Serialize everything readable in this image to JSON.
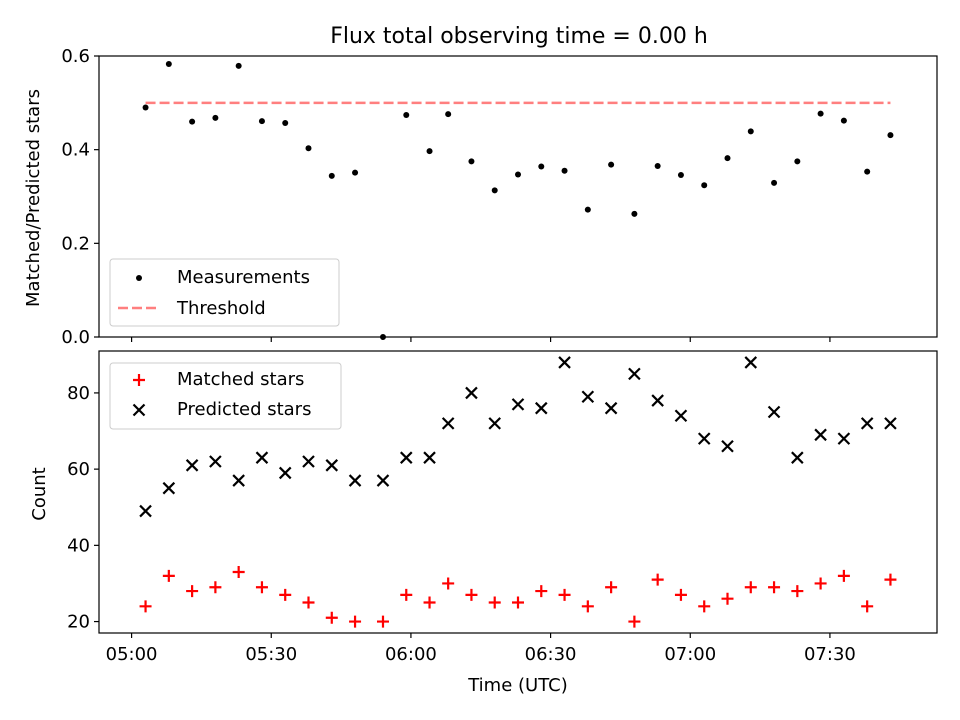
{
  "chart_data": [
    {
      "type": "scatter",
      "title": "Flux total observing time = 0.00 h",
      "ylabel": "Matched/Predicted stars",
      "ylim": [
        0,
        0.6
      ],
      "yticks": [
        "0.0",
        "0.2",
        "0.4",
        "0.6"
      ],
      "x": [
        "05:03",
        "05:08",
        "05:13",
        "05:18",
        "05:23",
        "05:28",
        "05:33",
        "05:38",
        "05:43",
        "05:48",
        "05:54",
        "05:59",
        "06:04",
        "06:08",
        "06:13",
        "06:18",
        "06:23",
        "06:28",
        "06:33",
        "06:38",
        "06:43",
        "06:48",
        "06:53",
        "06:58",
        "07:03",
        "07:08",
        "07:13",
        "07:18",
        "07:23",
        "07:28",
        "07:33",
        "07:38",
        "07:43"
      ],
      "series": [
        {
          "name": "Measurements",
          "marker": "dot",
          "color": "#000000",
          "x": [
            "05:03",
            "05:08",
            "05:13",
            "05:18",
            "05:23",
            "05:28",
            "05:33",
            "05:38",
            "05:43",
            "05:48",
            "05:54",
            "05:59",
            "06:04",
            "06:08",
            "06:13",
            "06:18",
            "06:23",
            "06:28",
            "06:33",
            "06:38",
            "06:43",
            "06:48",
            "06:53",
            "06:58",
            "07:03",
            "07:08",
            "07:13",
            "07:18",
            "07:23",
            "07:28",
            "07:33",
            "07:38",
            "07:43"
          ],
          "values": [
            0.49,
            0.583,
            0.46,
            0.468,
            0.579,
            0.461,
            0.457,
            0.403,
            0.344,
            0.351,
            0.0,
            0.474,
            0.397,
            0.476,
            0.375,
            0.313,
            0.347,
            0.364,
            0.355,
            0.272,
            0.368,
            0.263,
            0.365,
            0.346,
            0.324,
            0.382,
            0.439,
            0.329,
            0.375,
            0.477,
            0.462,
            0.353,
            0.431
          ]
        },
        {
          "name": "Threshold",
          "marker": "dashed-line",
          "color": "#ff7f7f",
          "x": [
            "05:03",
            "07:43"
          ],
          "values": [
            0.5,
            0.5
          ]
        }
      ],
      "legend": "lower-left"
    },
    {
      "type": "scatter",
      "xlabel": "Time (UTC)",
      "ylabel": "Count",
      "ylim": [
        17,
        91
      ],
      "yticks": [
        "20",
        "40",
        "60",
        "80"
      ],
      "xticks": [
        "05:00",
        "05:30",
        "06:00",
        "06:30",
        "07:00",
        "07:30"
      ],
      "x": [
        "05:03",
        "05:08",
        "05:13",
        "05:18",
        "05:23",
        "05:28",
        "05:33",
        "05:38",
        "05:43",
        "05:48",
        "05:54",
        "05:59",
        "06:04",
        "06:08",
        "06:13",
        "06:18",
        "06:23",
        "06:28",
        "06:33",
        "06:38",
        "06:43",
        "06:48",
        "06:53",
        "06:58",
        "07:03",
        "07:08",
        "07:13",
        "07:18",
        "07:23",
        "07:28",
        "07:33",
        "07:38",
        "07:43"
      ],
      "series": [
        {
          "name": "Matched stars",
          "marker": "plus",
          "color": "#ff0000",
          "values": [
            24,
            32,
            28,
            29,
            33,
            29,
            27,
            25,
            21,
            20,
            20,
            27,
            25,
            30,
            27,
            25,
            25,
            28,
            27,
            24,
            29,
            20,
            31,
            27,
            24,
            26,
            29,
            29,
            28,
            30,
            32,
            24,
            31
          ]
        },
        {
          "name": "Predicted stars",
          "marker": "x",
          "color": "#000000",
          "values": [
            49,
            55,
            61,
            62,
            57,
            63,
            59,
            62,
            61,
            57,
            57,
            63,
            63,
            72,
            80,
            72,
            77,
            76,
            88,
            79,
            76,
            85,
            78,
            74,
            68,
            66,
            88,
            75,
            63,
            69,
            68,
            72,
            72
          ]
        }
      ],
      "legend": "upper-left"
    }
  ]
}
